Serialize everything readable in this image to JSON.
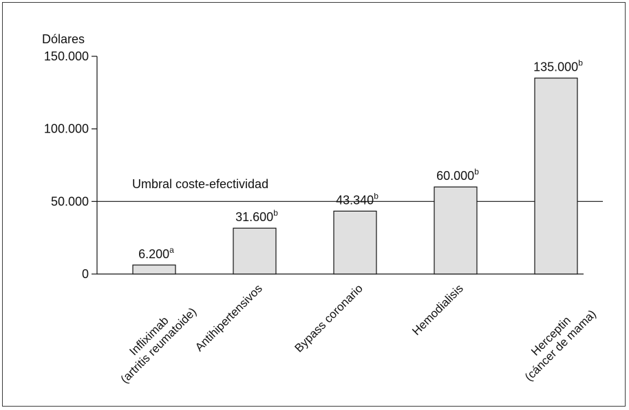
{
  "chart_data": {
    "type": "bar",
    "ylabel": "Dólares",
    "ylim": [
      0,
      150000
    ],
    "yticks": [
      {
        "value": 0,
        "label": "0"
      },
      {
        "value": 50000,
        "label": "50.000"
      },
      {
        "value": 100000,
        "label": "100.000"
      },
      {
        "value": 150000,
        "label": "150.000"
      }
    ],
    "bar_color": "#e0e0e0",
    "grid": false,
    "threshold": {
      "value": 50000,
      "label": "Umbral coste-efectividad"
    },
    "bars": [
      {
        "category": [
          "Infliximab",
          "(artritis reumatoide)"
        ],
        "value": 6200,
        "label": "6.200",
        "note": "a"
      },
      {
        "category": [
          "Antihipertensivos"
        ],
        "value": 31600,
        "label": "31.600",
        "note": "b"
      },
      {
        "category": [
          "Bypass coronario"
        ],
        "value": 43340,
        "label": "43.340",
        "note": "b"
      },
      {
        "category": [
          "Hemodialisis"
        ],
        "value": 60000,
        "label": "60.000",
        "note": "b"
      },
      {
        "category": [
          "Herceptin",
          "(cáncer de mama)"
        ],
        "value": 135000,
        "label": "135.000",
        "note": "b"
      }
    ]
  }
}
